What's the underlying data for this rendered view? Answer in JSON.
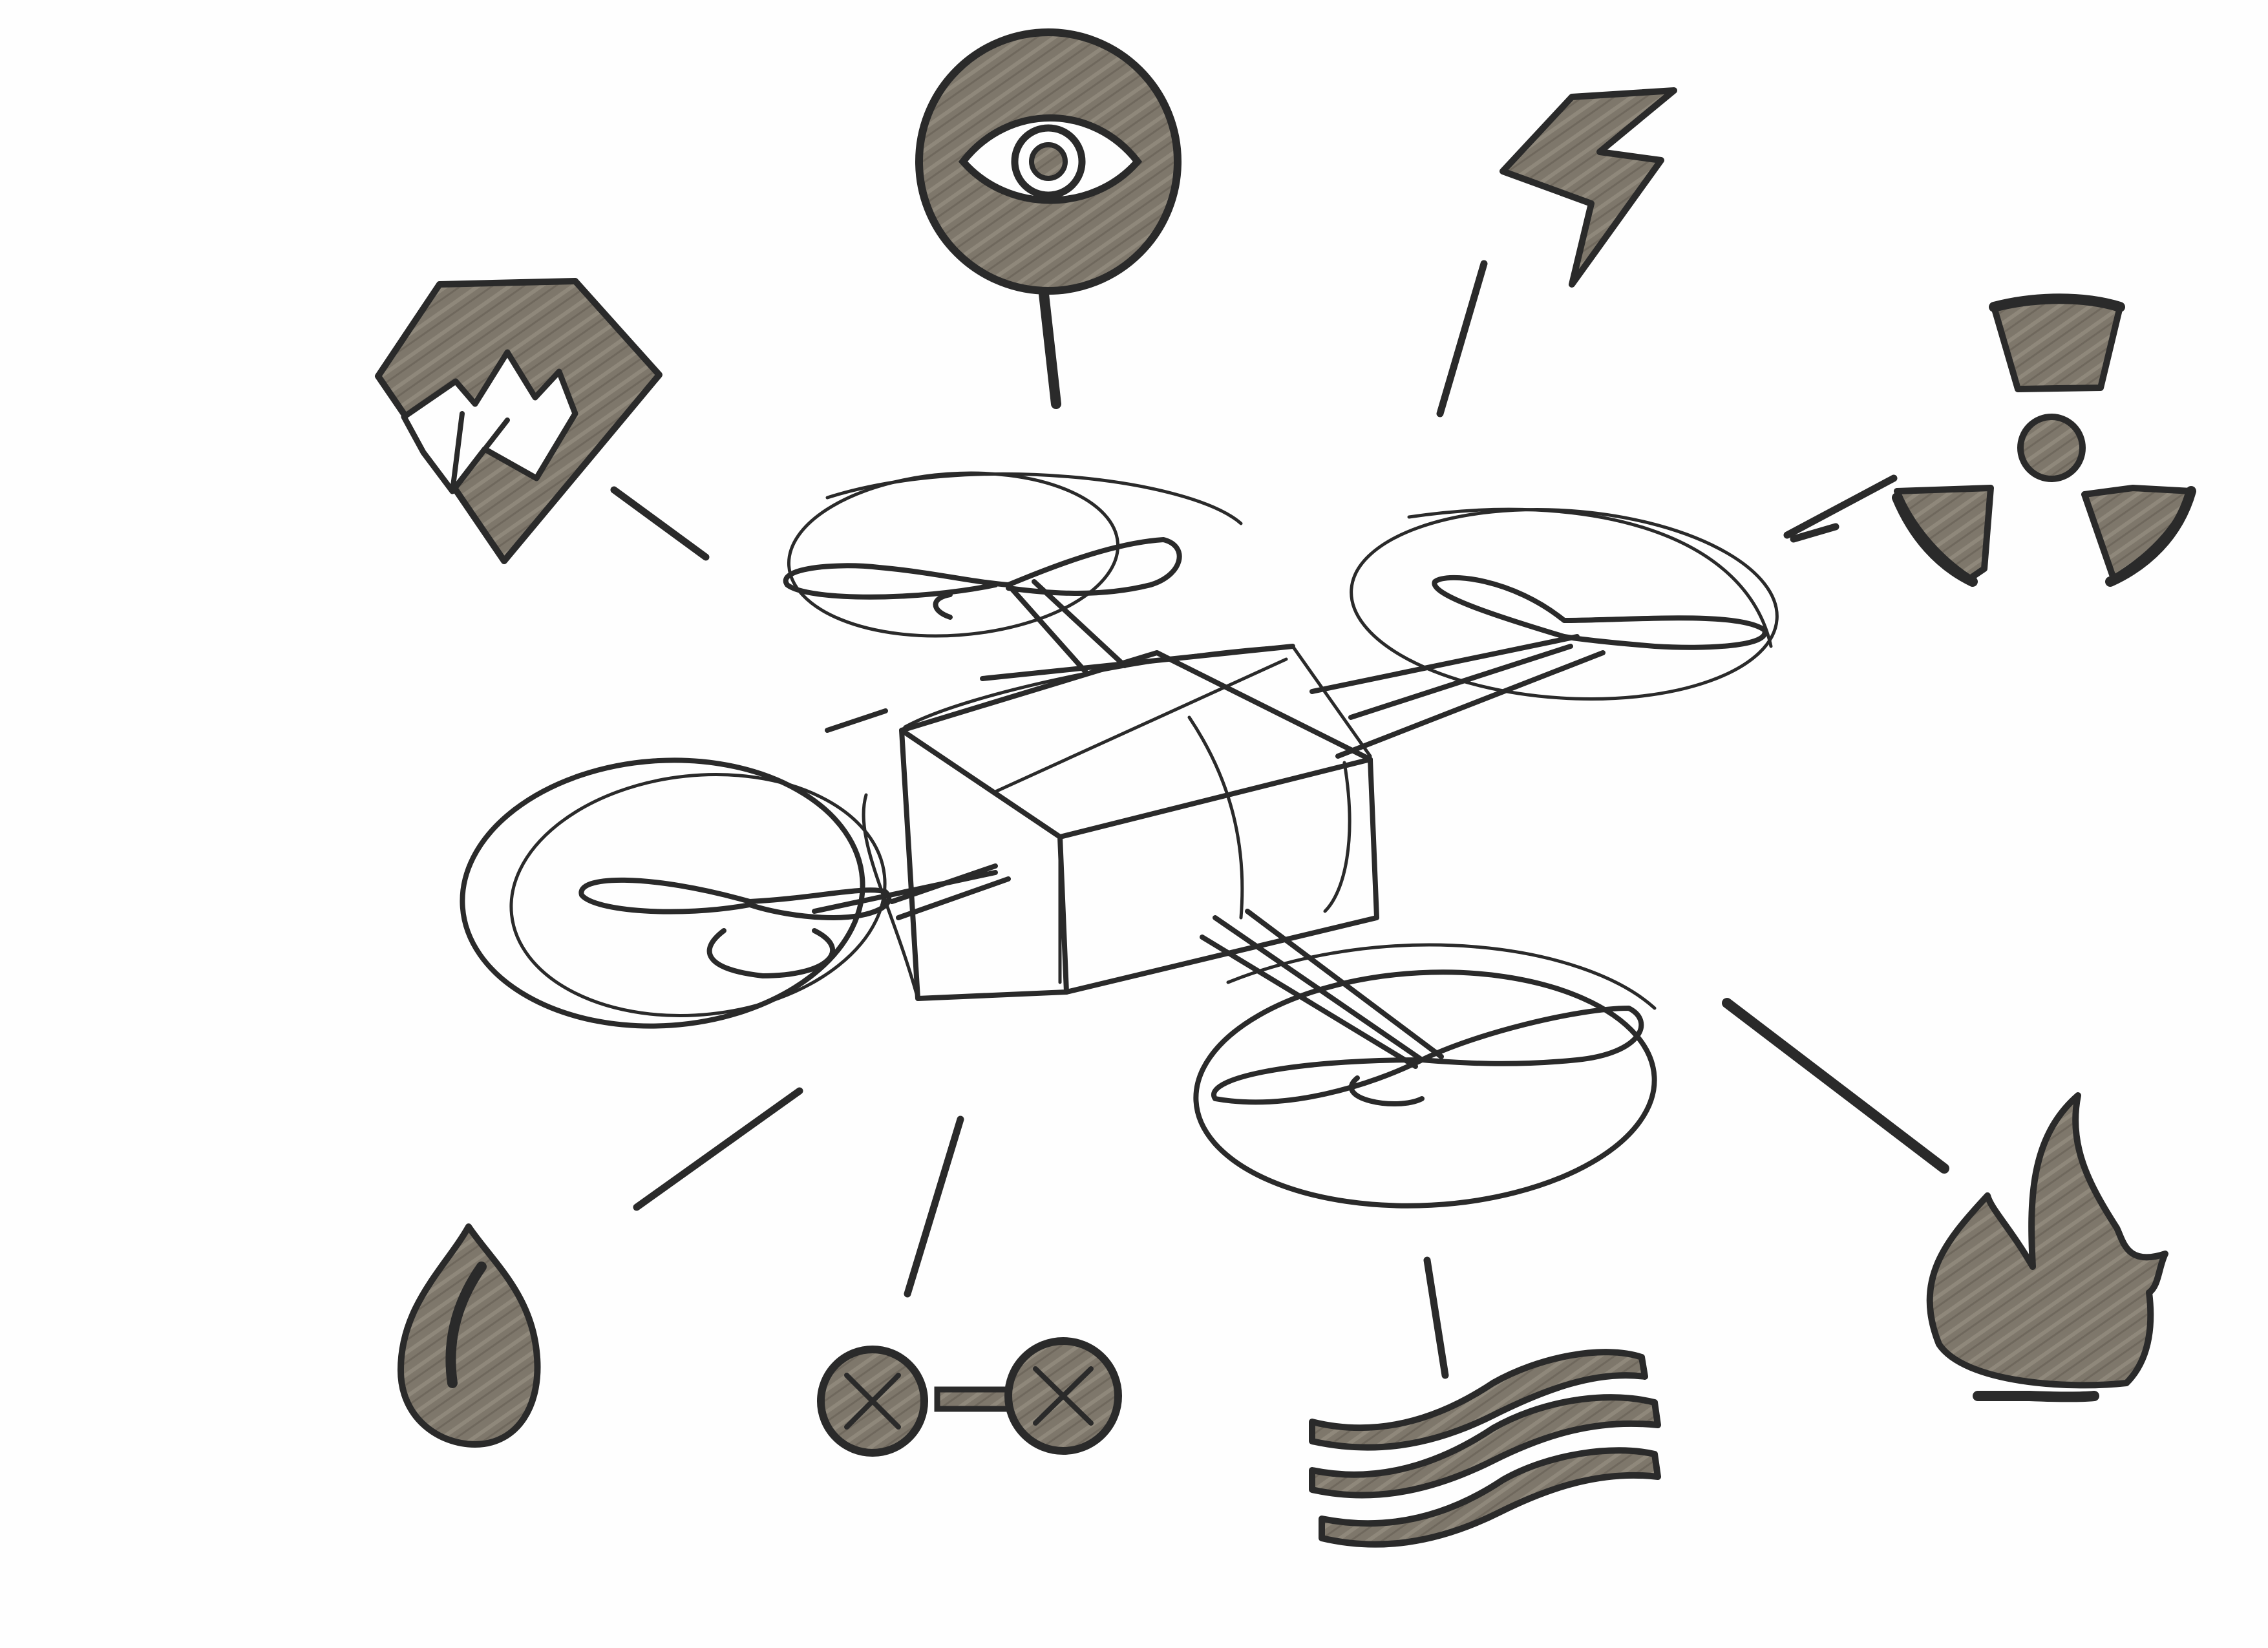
{
  "colors": {
    "paper": "#fefefe",
    "ink": "#2a2a2a",
    "marker_shade": "#7e776b"
  },
  "center": {
    "icon": "quadcopter-drone-icon"
  },
  "hazard_icons": [
    {
      "name": "mountain-terrain-icon"
    },
    {
      "name": "eye-visibility-icon"
    },
    {
      "name": "lightning-bolt-icon"
    },
    {
      "name": "radiation-hazard-icon"
    },
    {
      "name": "fire-flame-icon"
    },
    {
      "name": "wind-waves-icon"
    },
    {
      "name": "linked-fault-circles-icon"
    },
    {
      "name": "water-drop-icon"
    }
  ]
}
